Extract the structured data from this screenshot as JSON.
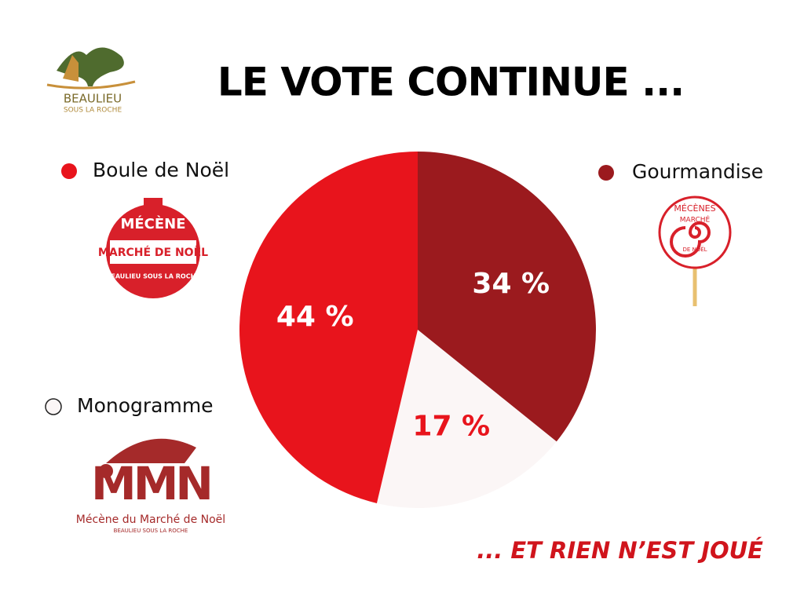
{
  "chart_data": {
    "type": "pie",
    "title": "LE VOTE CONTINUE ...",
    "annotation": "... ET RIEN N’EST JOUÉ",
    "categories": [
      "Gourmandise",
      "Monogramme",
      "Boule de Noël"
    ],
    "values": [
      34,
      17,
      44
    ],
    "value_labels": [
      "34 %",
      "17 %",
      "44 %"
    ],
    "colors": [
      "#9b1a1e",
      "#fbf6f6",
      "#e8141c"
    ],
    "label_colors": [
      "#ffffff",
      "#e8141c",
      "#ffffff"
    ]
  },
  "logos": {
    "beaulieu": [
      "BEAULIEU",
      "SOUS LA ROCHE"
    ],
    "boule": [
      "MÉCÈNE",
      "MARCHÉ DE NOËL",
      "BEAULIEU SOUS LA ROCHE"
    ],
    "gourmandise": [
      "MÉCÈNES",
      "MARCHÉ",
      "DE NOËL"
    ],
    "monogramme": [
      "MMN",
      "Mécène du Marché de Noël",
      "BEAULIEU SOUS LA ROCHE"
    ]
  }
}
